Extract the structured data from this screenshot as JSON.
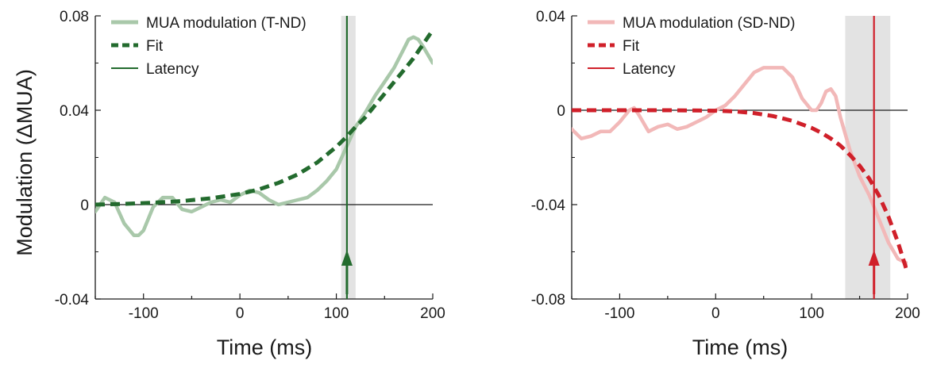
{
  "shared": {
    "ylabel": "Modulation (ΔMUA)",
    "xlabel": "Time (ms)"
  },
  "chart_data": [
    {
      "type": "line",
      "xlabel": "Time (ms)",
      "ylabel": "Modulation (ΔMUA)",
      "xlim": [
        -150,
        200
      ],
      "ylim": [
        -0.04,
        0.08
      ],
      "xticks": [
        -100,
        0,
        100,
        200
      ],
      "xtick_labels": [
        "-100",
        "0",
        "100",
        "200"
      ],
      "yticks": [
        -0.04,
        0,
        0.04,
        0.08
      ],
      "ytick_labels": [
        "-0.04",
        "0",
        "0.04",
        "0.08"
      ],
      "legend_position": "top-left",
      "zero_line": true,
      "latency": 111,
      "latency_band": [
        105,
        120
      ],
      "colors": {
        "data": "#a9c8aa",
        "fit": "#236b2e",
        "latency": "#236b2e",
        "band": "#e3e3e3"
      },
      "series": [
        {
          "name": "MUA modulation (T-ND)",
          "style": "data",
          "x": [
            -150,
            -140,
            -130,
            -120,
            -110,
            -105,
            -100,
            -90,
            -80,
            -70,
            -60,
            -50,
            -40,
            -30,
            -20,
            -10,
            0,
            10,
            20,
            30,
            40,
            50,
            60,
            70,
            80,
            90,
            100,
            110,
            120,
            130,
            140,
            150,
            160,
            170,
            175,
            180,
            185,
            190,
            200
          ],
          "y": [
            -0.003,
            0.003,
            0.001,
            -0.008,
            -0.013,
            -0.013,
            -0.011,
            -0.001,
            0.003,
            0.003,
            -0.002,
            -0.003,
            -0.001,
            0.001,
            0.002,
            0.001,
            0.004,
            0.006,
            0.005,
            0.002,
            0.0,
            0.001,
            0.002,
            0.003,
            0.006,
            0.01,
            0.015,
            0.024,
            0.033,
            0.039,
            0.046,
            0.052,
            0.058,
            0.066,
            0.07,
            0.071,
            0.07,
            0.067,
            0.06
          ]
        },
        {
          "name": "Fit",
          "style": "fit",
          "x": [
            -150,
            -120,
            -90,
            -60,
            -30,
            0,
            20,
            40,
            60,
            80,
            100,
            110,
            120,
            130,
            140,
            150,
            160,
            170,
            180,
            190,
            200
          ],
          "y": [
            0.0,
            0.0003,
            0.0008,
            0.0015,
            0.0027,
            0.0045,
            0.0065,
            0.0092,
            0.0128,
            0.0178,
            0.0245,
            0.0285,
            0.033,
            0.037,
            0.042,
            0.047,
            0.052,
            0.057,
            0.062,
            0.068,
            0.074
          ]
        },
        {
          "name": "Latency",
          "style": "latency",
          "x": [
            111,
            111
          ],
          "y": [
            -0.04,
            0.08
          ]
        }
      ]
    },
    {
      "type": "line",
      "xlabel": "Time (ms)",
      "ylabel": "",
      "xlim": [
        -150,
        200
      ],
      "ylim": [
        -0.08,
        0.04
      ],
      "xticks": [
        -100,
        0,
        100,
        200
      ],
      "xtick_labels": [
        "-100",
        "0",
        "100",
        "200"
      ],
      "yticks": [
        -0.08,
        -0.04,
        0,
        0.04
      ],
      "ytick_labels": [
        "-0.08",
        "-0.04",
        "0",
        "0.04"
      ],
      "legend_position": "top-left",
      "zero_line": true,
      "latency": 165,
      "latency_band": [
        135,
        182
      ],
      "colors": {
        "data": "#f2b8b8",
        "fit": "#d0202a",
        "latency": "#d0202a",
        "band": "#e3e3e3"
      },
      "series": [
        {
          "name": "MUA modulation (SD-ND)",
          "style": "data",
          "x": [
            -150,
            -140,
            -130,
            -120,
            -110,
            -100,
            -90,
            -85,
            -80,
            -70,
            -60,
            -50,
            -40,
            -30,
            -20,
            -10,
            0,
            10,
            20,
            30,
            40,
            50,
            60,
            70,
            80,
            90,
            100,
            105,
            110,
            115,
            120,
            125,
            130,
            140,
            150,
            160,
            170,
            180,
            190,
            200
          ],
          "y": [
            -0.008,
            -0.012,
            -0.011,
            -0.009,
            -0.009,
            -0.005,
            0.0,
            0.001,
            -0.002,
            -0.009,
            -0.007,
            -0.006,
            -0.008,
            -0.007,
            -0.005,
            -0.003,
            0.0,
            0.002,
            0.006,
            0.011,
            0.016,
            0.018,
            0.018,
            0.018,
            0.014,
            0.005,
            0.0,
            0.0,
            0.003,
            0.008,
            0.009,
            0.006,
            -0.003,
            -0.017,
            -0.028,
            -0.036,
            -0.046,
            -0.056,
            -0.063,
            -0.065
          ]
        },
        {
          "name": "Fit",
          "style": "fit",
          "x": [
            -150,
            -100,
            -50,
            0,
            20,
            40,
            60,
            80,
            100,
            110,
            120,
            130,
            140,
            150,
            160,
            170,
            180,
            190,
            200
          ],
          "y": [
            0.0,
            0.0,
            0.0,
            -0.0002,
            -0.0005,
            -0.0012,
            -0.0025,
            -0.0045,
            -0.0075,
            -0.0095,
            -0.012,
            -0.015,
            -0.019,
            -0.0235,
            -0.029,
            -0.036,
            -0.045,
            -0.056,
            -0.069
          ]
        },
        {
          "name": "Latency",
          "style": "latency",
          "x": [
            165,
            165
          ],
          "y": [
            -0.08,
            0.04
          ]
        }
      ]
    }
  ]
}
